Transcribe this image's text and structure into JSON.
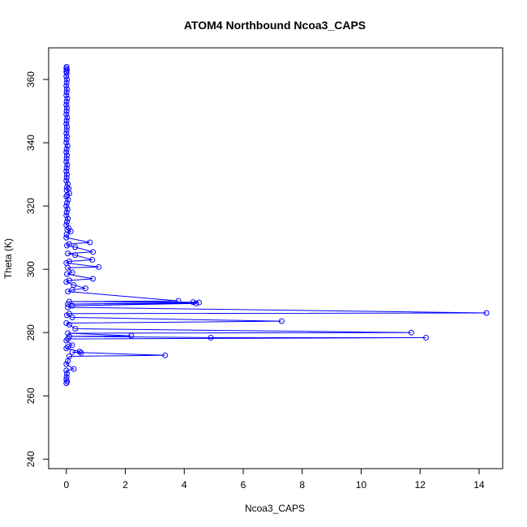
{
  "chart_data": {
    "type": "line",
    "title": "ATOM4 Northbound Ncoa3_CAPS",
    "xlabel": "Ncoa3_CAPS",
    "ylabel": "Theta (K)",
    "xlim": [
      -0.6,
      14.8
    ],
    "ylim": [
      237,
      370
    ],
    "xticks": [
      0,
      2,
      4,
      6,
      8,
      10,
      12,
      14
    ],
    "yticks": [
      240,
      260,
      280,
      300,
      320,
      340,
      360
    ],
    "grid": false,
    "legend": "none",
    "colors": {
      "series": "#0000ff",
      "axis": "#000000"
    },
    "series": [
      {
        "marker": "open-circle",
        "line": true,
        "points": [
          [
            0.01,
            364
          ],
          [
            0.0,
            363.5
          ],
          [
            0.02,
            363
          ],
          [
            0.0,
            362.5
          ],
          [
            0.01,
            362
          ],
          [
            0.0,
            361
          ],
          [
            0.02,
            360
          ],
          [
            0.01,
            359
          ],
          [
            0.0,
            358
          ],
          [
            0.02,
            357
          ],
          [
            0.01,
            356
          ],
          [
            0.0,
            355
          ],
          [
            0.03,
            354
          ],
          [
            0.01,
            353
          ],
          [
            0.0,
            352
          ],
          [
            0.02,
            351
          ],
          [
            0.01,
            350
          ],
          [
            0.0,
            349
          ],
          [
            0.03,
            348
          ],
          [
            0.01,
            347
          ],
          [
            0.0,
            346
          ],
          [
            0.02,
            345
          ],
          [
            0.01,
            344
          ],
          [
            0.0,
            343
          ],
          [
            0.02,
            342
          ],
          [
            0.01,
            341
          ],
          [
            0.0,
            340
          ],
          [
            0.04,
            339
          ],
          [
            0.01,
            338
          ],
          [
            0.0,
            337
          ],
          [
            0.02,
            336
          ],
          [
            0.01,
            335
          ],
          [
            0.0,
            334
          ],
          [
            0.03,
            333
          ],
          [
            0.01,
            332
          ],
          [
            0.0,
            331
          ],
          [
            0.02,
            330
          ],
          [
            0.01,
            329
          ],
          [
            0.0,
            328
          ],
          [
            0.05,
            327
          ],
          [
            0.02,
            326
          ],
          [
            0.08,
            325.5
          ],
          [
            0.01,
            325
          ],
          [
            0.1,
            324
          ],
          [
            0.03,
            323.5
          ],
          [
            0.0,
            323
          ],
          [
            0.06,
            322
          ],
          [
            0.02,
            321
          ],
          [
            0.0,
            320
          ],
          [
            0.04,
            319
          ],
          [
            0.01,
            318
          ],
          [
            0.0,
            317
          ],
          [
            0.05,
            316
          ],
          [
            0.02,
            315
          ],
          [
            0.0,
            314
          ],
          [
            0.08,
            313
          ],
          [
            0.03,
            312.5
          ],
          [
            0.15,
            312
          ],
          [
            0.01,
            311
          ],
          [
            0.0,
            310
          ],
          [
            0.8,
            308.5
          ],
          [
            0.1,
            308
          ],
          [
            0.02,
            307.5
          ],
          [
            0.3,
            307
          ],
          [
            0.9,
            305.5
          ],
          [
            0.05,
            305
          ],
          [
            0.3,
            304.5
          ],
          [
            0.88,
            303
          ],
          [
            0.1,
            302.5
          ],
          [
            0.0,
            302
          ],
          [
            1.1,
            300.7
          ],
          [
            0.05,
            300.5
          ],
          [
            0.2,
            299
          ],
          [
            0.02,
            298.5
          ],
          [
            0.9,
            297
          ],
          [
            0.1,
            296.5
          ],
          [
            0.0,
            296
          ],
          [
            0.25,
            295
          ],
          [
            0.65,
            294
          ],
          [
            0.2,
            293.5
          ],
          [
            0.05,
            293
          ],
          [
            3.8,
            290
          ],
          [
            0.1,
            289.8
          ],
          [
            4.3,
            289.6
          ],
          [
            4.5,
            289.5
          ],
          [
            0.05,
            289
          ],
          [
            4.4,
            289.2
          ],
          [
            0.2,
            288.5
          ],
          [
            0.05,
            288
          ],
          [
            14.25,
            286.2
          ],
          [
            0.1,
            286
          ],
          [
            0.02,
            285.5
          ],
          [
            0.2,
            284.8
          ],
          [
            7.3,
            283.6
          ],
          [
            0.0,
            283
          ],
          [
            0.1,
            282.5
          ],
          [
            0.3,
            281.2
          ],
          [
            11.7,
            280
          ],
          [
            0.05,
            279.8
          ],
          [
            2.2,
            279
          ],
          [
            0.1,
            278.8
          ],
          [
            4.9,
            278.4
          ],
          [
            12.2,
            278.4
          ],
          [
            0.05,
            278
          ],
          [
            0.0,
            277.5
          ],
          [
            0.2,
            276
          ],
          [
            0.05,
            275.5
          ],
          [
            0.0,
            275
          ],
          [
            0.45,
            274
          ],
          [
            0.5,
            273.6
          ],
          [
            0.2,
            273.8
          ],
          [
            3.35,
            272.8
          ],
          [
            0.1,
            272.5
          ],
          [
            0.05,
            271
          ],
          [
            0.0,
            270
          ],
          [
            0.25,
            268.5
          ],
          [
            0.0,
            268
          ],
          [
            0.02,
            267
          ],
          [
            0.01,
            266
          ],
          [
            0.0,
            265.2
          ],
          [
            0.03,
            264.5
          ],
          [
            0.0,
            264
          ]
        ]
      }
    ]
  }
}
